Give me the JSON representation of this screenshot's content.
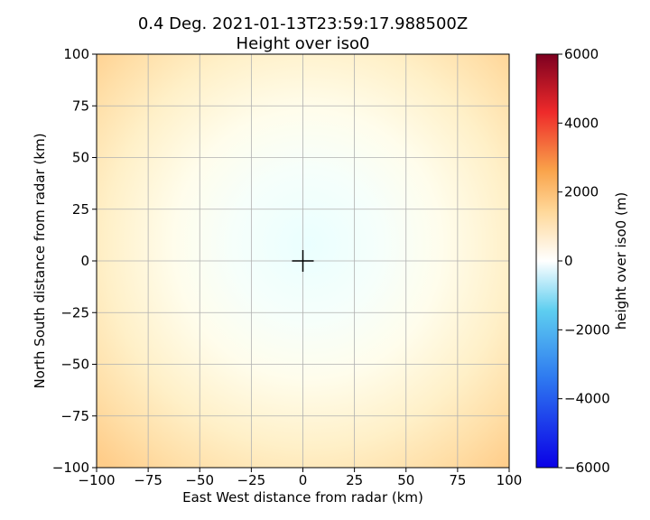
{
  "chart_data": {
    "type": "heatmap",
    "title_line1": "0.4 Deg. 2021-01-13T23:59:17.988500Z",
    "title_line2": "Height over iso0",
    "xlabel": "East West distance from radar (km)",
    "ylabel": "North South distance from radar (km)",
    "xlim": [
      -100,
      100
    ],
    "ylim": [
      -100,
      100
    ],
    "x_ticks": [
      -100,
      -75,
      -50,
      -25,
      0,
      25,
      50,
      75,
      100
    ],
    "y_ticks": [
      -100,
      -75,
      -50,
      -25,
      0,
      25,
      50,
      75,
      100
    ],
    "x_tick_labels": [
      "−100",
      "−75",
      "−50",
      "−25",
      "0",
      "25",
      "50",
      "75",
      "100"
    ],
    "y_tick_labels": [
      "−100",
      "−75",
      "−50",
      "−25",
      "0",
      "25",
      "50",
      "75",
      "100"
    ],
    "grid": true,
    "radar_marker": {
      "x": 0,
      "y": 0,
      "symbol": "+"
    },
    "field": {
      "description_units": "m",
      "approx_value_at_center": -300,
      "approx_value_at_edge_midpoints": 900,
      "approx_value_at_corners": 1700
    },
    "colorbar": {
      "label": "height over iso0 (m)",
      "min": -6000,
      "max": 6000,
      "ticks": [
        -6000,
        -4000,
        -2000,
        0,
        2000,
        4000,
        6000
      ],
      "tick_labels": [
        "−6000",
        "−4000",
        "−2000",
        "0",
        "2000",
        "4000",
        "6000"
      ],
      "colormap": "RdYlBu_r-like",
      "colors": {
        "low": "#0a00e6",
        "blue": "#2f7bf0",
        "light_blue": "#5ecef0",
        "white": "#ffffff",
        "light_orange": "#ffd899",
        "orange": "#f9a24a",
        "red": "#ee2a2a",
        "high": "#7d0020"
      }
    }
  }
}
